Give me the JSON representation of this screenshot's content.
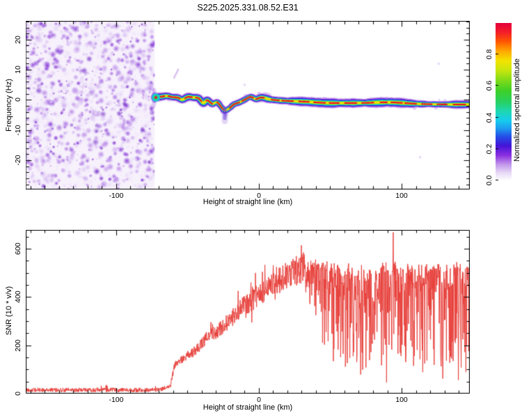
{
  "title": "S225.2025.331.08.52.E31",
  "colors": {
    "frame": "#000000",
    "background": "#ffffff",
    "snr_line": "#e8413c",
    "noise_purple_dark": "#5c0bc0",
    "noise_purple_light": "#e0ccf5",
    "trace_core_red": "#ea0f26"
  },
  "chart_data": [
    {
      "type": "heatmap",
      "title": "S225.2025.331.08.52.E31",
      "xlabel": "Height of straight line (km)",
      "ylabel": "Frequency (Hz)",
      "xlim": [
        -163.4,
        147.8
      ],
      "ylim": [
        -29.7,
        26.2
      ],
      "x_ticks": [
        {
          "value": -100,
          "label": "-100"
        },
        {
          "value": 0,
          "label": "0"
        },
        {
          "value": 100,
          "label": "100"
        }
      ],
      "x_minor_step": 10,
      "y_ticks": [
        {
          "value": -20,
          "label": "-20"
        },
        {
          "value": -10,
          "label": "-10"
        },
        {
          "value": 0,
          "label": "0"
        },
        {
          "value": 10,
          "label": "10"
        },
        {
          "value": 20,
          "label": "20"
        }
      ],
      "y_minor_step": 2,
      "colorbar": {
        "label": "Normalized spectral amplitude",
        "ticks": [
          {
            "value": 0.0,
            "label": "0.0"
          },
          {
            "value": 0.2,
            "label": "0.2"
          },
          {
            "value": 0.4,
            "label": "0.4"
          },
          {
            "value": 0.6,
            "label": "0.6"
          },
          {
            "value": 0.8,
            "label": "0.8"
          }
        ],
        "stops": [
          [
            0,
            "#ffffff"
          ],
          [
            0.05,
            "#e7d7f6"
          ],
          [
            0.1,
            "#c49aec"
          ],
          [
            0.16,
            "#8b2fe0"
          ],
          [
            0.22,
            "#4414d8"
          ],
          [
            0.28,
            "#2450e8"
          ],
          [
            0.33,
            "#1e9cf0"
          ],
          [
            0.38,
            "#16ccee"
          ],
          [
            0.44,
            "#1fd8b0"
          ],
          [
            0.5,
            "#28d060"
          ],
          [
            0.57,
            "#3fd028"
          ],
          [
            0.63,
            "#7ada1a"
          ],
          [
            0.7,
            "#c8e60e"
          ],
          [
            0.76,
            "#f4e400"
          ],
          [
            0.82,
            "#ffaa00"
          ],
          [
            0.88,
            "#ff5a00"
          ],
          [
            0.94,
            "#f41e28"
          ],
          [
            1.0,
            "#e4003c"
          ]
        ]
      },
      "noise_region": {
        "x_range_km": [
          -163.4,
          -73
        ],
        "description": "dense low-amplitude purple speckle over full frequency range",
        "seed": 7,
        "blob_count": 1300
      },
      "echo_trace_points": [
        [
          -73.2,
          0.8
        ],
        [
          -68,
          1.1
        ],
        [
          -64.4,
          1.3
        ],
        [
          -60,
          0.9
        ],
        [
          -57,
          0.8
        ],
        [
          -53.7,
          0.1
        ],
        [
          -49.8,
          1.0
        ],
        [
          -46,
          0.8
        ],
        [
          -42.4,
          0.6
        ],
        [
          -39,
          -1.0
        ],
        [
          -36.1,
          -0.1
        ],
        [
          -32.7,
          -1.3
        ],
        [
          -29.3,
          -0.8
        ],
        [
          -26.3,
          -2.4
        ],
        [
          -23.9,
          -3.5
        ],
        [
          -20.5,
          -2.7
        ],
        [
          -17.6,
          -1.5
        ],
        [
          -13.7,
          -0.8
        ],
        [
          -9.8,
          0.1
        ],
        [
          -5.9,
          1.0
        ],
        [
          -2,
          0.3
        ],
        [
          2,
          0.8
        ],
        [
          8.8,
          0.1
        ],
        [
          18.5,
          -0.3
        ],
        [
          33.2,
          -0.6
        ],
        [
          47.8,
          -1.0
        ],
        [
          72.2,
          -1.0
        ],
        [
          91.7,
          -0.8
        ],
        [
          111.2,
          -1.3
        ],
        [
          130.7,
          -1.5
        ],
        [
          147.5,
          -1.5
        ]
      ],
      "dip_tail": {
        "x_km": -23.9,
        "from_hz": -3.5,
        "to_hz": -7.0
      },
      "speckles": [
        {
          "x_km": -58,
          "f_hz": 8.7,
          "type": "streak"
        },
        {
          "x_km": 126,
          "f_hz": 12,
          "type": "dot"
        },
        {
          "x_km": -10,
          "f_hz": 5,
          "type": "dot"
        },
        {
          "x_km": 113,
          "f_hz": -19,
          "type": "dot"
        }
      ]
    },
    {
      "type": "line",
      "xlabel": "Height of straight line (km)",
      "ylabel": "SNR (10 * v/v)",
      "xlim": [
        -163.4,
        147.8
      ],
      "ylim": [
        0,
        678
      ],
      "x_ticks": [
        {
          "value": -100,
          "label": "-100"
        },
        {
          "value": 0,
          "label": "0"
        },
        {
          "value": 100,
          "label": "100"
        }
      ],
      "x_minor_step": 10,
      "y_ticks": [
        {
          "value": 0,
          "label": "0"
        },
        {
          "value": 200,
          "label": "200"
        },
        {
          "value": 400,
          "label": "400"
        },
        {
          "value": 600,
          "label": "600"
        }
      ],
      "y_minor_step": 50,
      "line_color": "#e8413c",
      "upper_envelope_points": [
        [
          -163,
          15
        ],
        [
          -70,
          15
        ],
        [
          -62,
          30
        ],
        [
          -59,
          120
        ],
        [
          -55,
          135
        ],
        [
          -50,
          160
        ],
        [
          -45,
          175
        ],
        [
          -40,
          205
        ],
        [
          -35,
          245
        ],
        [
          -30,
          255
        ],
        [
          -25,
          280
        ],
        [
          -20,
          305
        ],
        [
          -15,
          340
        ],
        [
          -10,
          365
        ],
        [
          -5,
          385
        ],
        [
          0,
          410
        ],
        [
          5,
          430
        ],
        [
          10,
          455
        ],
        [
          15,
          470
        ],
        [
          20,
          490
        ],
        [
          25,
          505
        ],
        [
          30,
          520
        ],
        [
          35,
          530
        ],
        [
          40,
          535
        ],
        [
          50,
          530
        ],
        [
          60,
          520
        ],
        [
          70,
          515
        ],
        [
          80,
          520
        ],
        [
          90,
          525
        ],
        [
          95,
          530
        ],
        [
          100,
          520
        ],
        [
          110,
          525
        ],
        [
          120,
          530
        ],
        [
          130,
          525
        ],
        [
          140,
          535
        ],
        [
          148,
          520
        ]
      ],
      "zones": {
        "baseline_end_km": -62,
        "ramp_end_km": 32
      },
      "noise": {
        "seed": 42,
        "baseline_amp": 9,
        "ramp_amp_start": 12,
        "ramp_amp_end": 65,
        "plateau_top_jitter": 22,
        "plateau_max_depth": 430,
        "depth_power": 2.3
      },
      "events": {
        "spikes": [
          {
            "x_km": 94.2,
            "value": 668
          },
          {
            "x_km": -14.6,
            "value": 425
          }
        ],
        "drops": [
          {
            "x_km": 128.8,
            "value": 62
          }
        ]
      }
    }
  ]
}
